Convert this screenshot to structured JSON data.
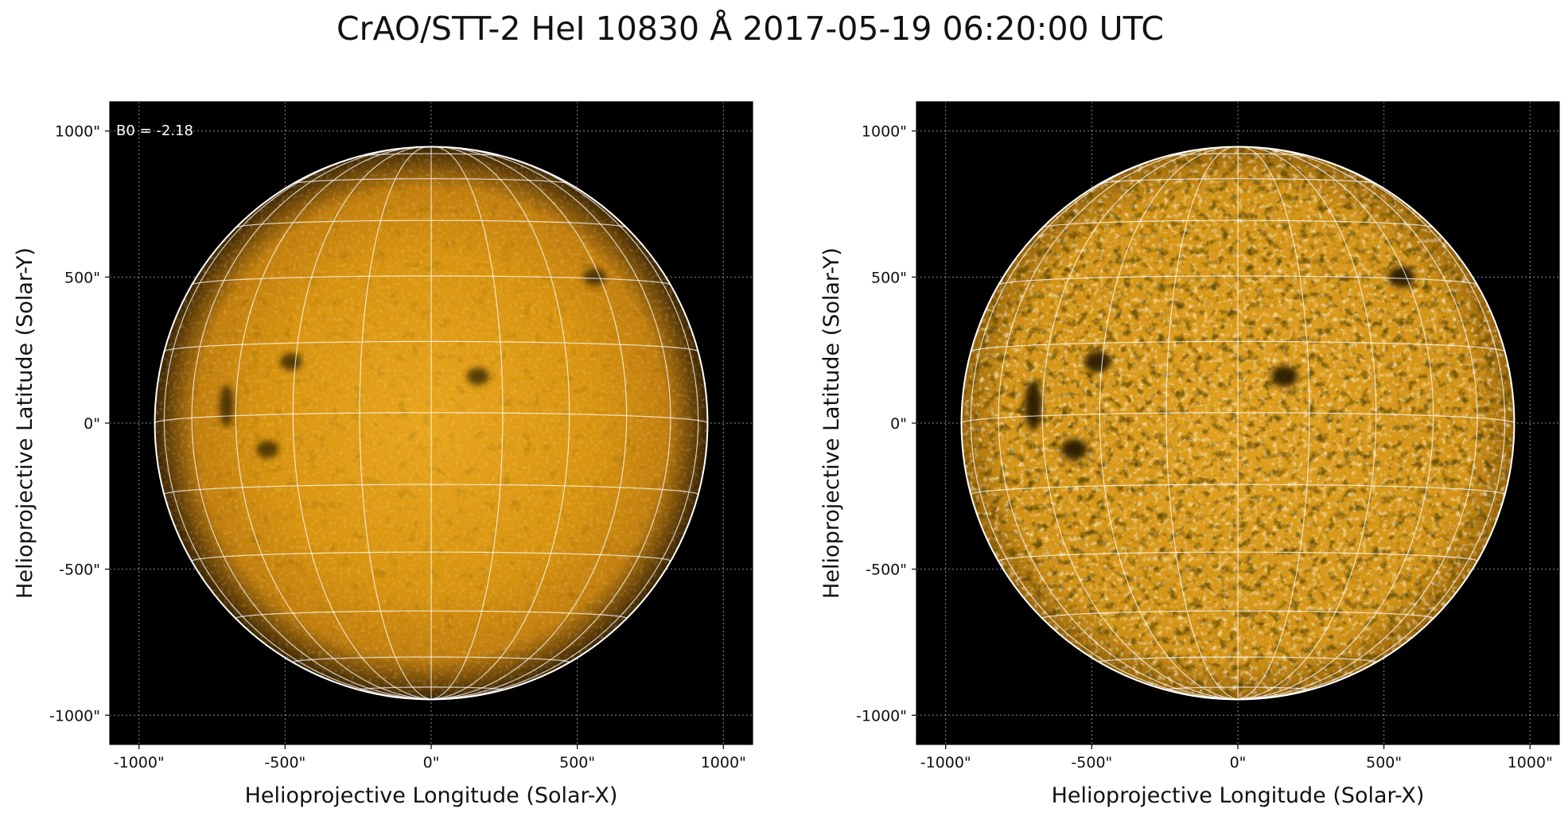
{
  "title": "CrAO/STT-2 HeI 10830 Å 2017-05-19 06:20:00 UTC",
  "colors": {
    "background": "#000000",
    "disk_center": "#e8a51c",
    "disk_mid": "#c27f0e",
    "disk_limb": "#3a2404",
    "grid": "#ffffff",
    "filament": "#2a1a04"
  },
  "panels": [
    {
      "id": "left",
      "annotation": "B0 = -2.18",
      "processing": "original",
      "xlabel": "Helioprojective Longitude (Solar-X)",
      "ylabel": "Helioprojective Latitude (Solar-Y)",
      "xticks": [
        -1000,
        -500,
        0,
        500,
        1000
      ],
      "yticks": [
        -1000,
        -500,
        0,
        500,
        1000
      ],
      "xtick_labels": [
        "-1000\"",
        "-500\"",
        "0\"",
        "500\"",
        "1000\""
      ],
      "ytick_labels": [
        "-1000\"",
        "-500\"",
        "0\"",
        "500\"",
        "1000\""
      ]
    },
    {
      "id": "right",
      "annotation": "",
      "processing": "contrast-enhanced",
      "xlabel": "Helioprojective Longitude (Solar-X)",
      "ylabel": "Helioprojective Latitude (Solar-Y)",
      "xticks": [
        -1000,
        -500,
        0,
        500,
        1000
      ],
      "yticks": [
        -1000,
        -500,
        0,
        500,
        1000
      ],
      "xtick_labels": [
        "-1000\"",
        "-500\"",
        "0\"",
        "500\"",
        "1000\""
      ],
      "ytick_labels": [
        "-1000\"",
        "-500\"",
        "0\"",
        "500\"",
        "1000\""
      ]
    }
  ],
  "solar_image": {
    "axis_range_arcsec": [
      -1100,
      1100
    ],
    "solar_radius_arcsec": 946,
    "b0_deg": -2.18,
    "grid_spacing_deg": 15,
    "features": [
      {
        "x_arcsec": -700,
        "y_arcsec": 60,
        "label": "filament"
      },
      {
        "x_arcsec": -560,
        "y_arcsec": -90,
        "label": "dark patch"
      },
      {
        "x_arcsec": -480,
        "y_arcsec": 210,
        "label": "dark patch"
      },
      {
        "x_arcsec": 160,
        "y_arcsec": 160,
        "label": "active region"
      },
      {
        "x_arcsec": 560,
        "y_arcsec": 500,
        "label": "dark patch"
      }
    ]
  }
}
